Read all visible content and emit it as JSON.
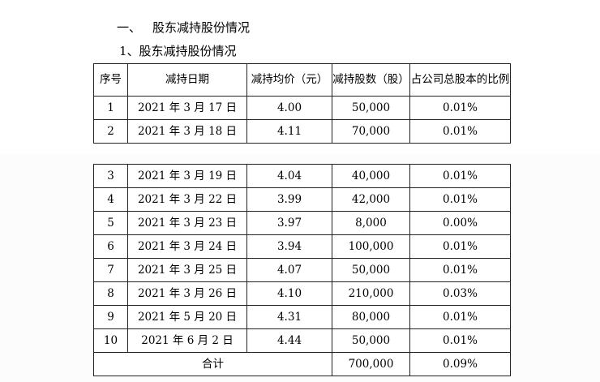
{
  "section": {
    "number": "一、",
    "title": "股东减持股份情况"
  },
  "subsection": {
    "title": "1、股东减持股份情况"
  },
  "table": {
    "headers": [
      "序号",
      "减持日期",
      "减持均价（元）",
      "减持股数（股）",
      "占公司总股本的比例"
    ],
    "rows_page1": [
      [
        "1",
        "2021 年 3 月 17 日",
        "4.00",
        "50,000",
        "0.01%"
      ],
      [
        "2",
        "2021 年 3 月 18 日",
        "4.11",
        "70,000",
        "0.01%"
      ]
    ],
    "rows_page2": [
      [
        "3",
        "2021 年 3 月 19 日",
        "4.04",
        "40,000",
        "0.01%"
      ],
      [
        "4",
        "2021 年 3 月 22 日",
        "3.99",
        "42,000",
        "0.01%"
      ],
      [
        "5",
        "2021 年 3 月 23 日",
        "3.97",
        "8,000",
        "0.00%"
      ],
      [
        "6",
        "2021 年 3 月 24 日",
        "3.94",
        "100,000",
        "0.01%"
      ],
      [
        "7",
        "2021 年 3 月 25 日",
        "4.07",
        "50,000",
        "0.01%"
      ],
      [
        "8",
        "2021 年 3 月 26 日",
        "4.10",
        "210,000",
        "0.03%"
      ],
      [
        "9",
        "2021 年 5 月 20 日",
        "4.31",
        "80,000",
        "0.01%"
      ],
      [
        "10",
        "2021 年 6 月 2 日",
        "4.44",
        "50,000",
        "0.01%"
      ]
    ],
    "total": {
      "label": "合计",
      "shares": "700,000",
      "ratio": "0.09%"
    }
  }
}
